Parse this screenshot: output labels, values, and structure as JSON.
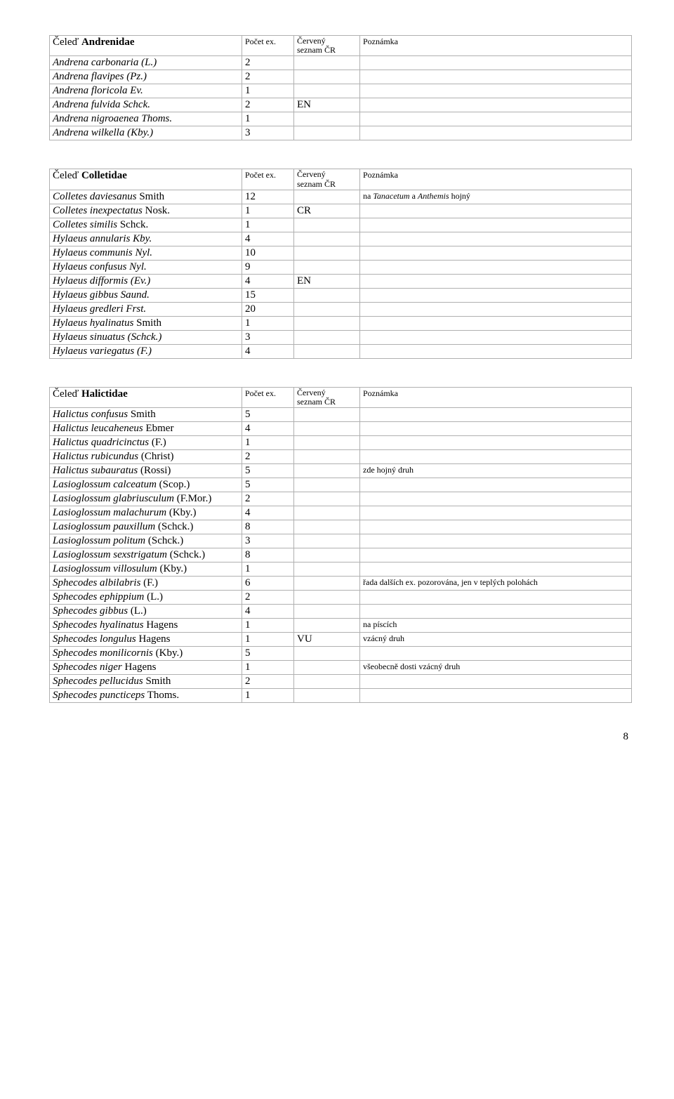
{
  "col_hdrs": {
    "count": "Počet ex.",
    "red_l1": "Červený",
    "red_l2": "seznam ČR",
    "note": "Poznámka"
  },
  "families": [
    {
      "name_prefix": "Čeleď ",
      "name_bold": "Andrenidae",
      "rows": [
        {
          "sp": "Andrena carbonaria (L.)",
          "sp_it": true,
          "cnt": "2",
          "red": "",
          "note": ""
        },
        {
          "sp": "Andrena flavipes (Pz.)",
          "sp_it": true,
          "cnt": "2",
          "red": "",
          "note": ""
        },
        {
          "sp": "Andrena floricola Ev.",
          "sp_it": true,
          "cnt": "1",
          "red": "",
          "note": ""
        },
        {
          "sp": "Andrena fulvida Schck.",
          "sp_it": true,
          "cnt": "2",
          "red": "EN",
          "note": ""
        },
        {
          "sp": "Andrena nigroaenea Thoms.",
          "sp_it": true,
          "cnt": "1",
          "red": "",
          "note": ""
        },
        {
          "sp": "Andrena wilkella (Kby.)",
          "sp_it": true,
          "cnt": "3",
          "red": "",
          "note": ""
        }
      ]
    },
    {
      "name_prefix": "Čeleď ",
      "name_bold": "Colletidae",
      "rows": [
        {
          "sp": "Colletes daviesanus Smith",
          "sp_it_first": "Colletes daviesanus",
          "sp_rest": " Smith",
          "cnt": "12",
          "red": "",
          "note_prefix": "na ",
          "note_it": "Tanacetum",
          "note_mid": " a ",
          "note_it2": "Anthemis",
          "note_suffix": " hojný"
        },
        {
          "sp": "Colletes inexpectatus Nosk.",
          "sp_it_first": "Colletes inexpectatus",
          "sp_rest": " Nosk.",
          "cnt": "1",
          "red": "CR",
          "note": ""
        },
        {
          "sp": "Colletes similis Schck.",
          "sp_it_first": "Colletes similis",
          "sp_rest": " Schck.",
          "cnt": "1",
          "red": "",
          "note": ""
        },
        {
          "sp": "Hylaeus annularis Kby.",
          "sp_it": true,
          "cnt": "4",
          "red": "",
          "note": ""
        },
        {
          "sp": "Hylaeus communis Nyl.",
          "sp_it": true,
          "cnt": "10",
          "red": "",
          "note": ""
        },
        {
          "sp": "Hylaeus confusus Nyl.",
          "sp_it": true,
          "cnt": "9",
          "red": "",
          "note": ""
        },
        {
          "sp": "Hylaeus difformis (Ev.)",
          "sp_it": true,
          "cnt": "4",
          "red": "EN",
          "note": ""
        },
        {
          "sp": "Hylaeus gibbus Saund.",
          "sp_it": true,
          "cnt": "15",
          "red": "",
          "note": ""
        },
        {
          "sp": "Hylaeus gredleri Frst.",
          "sp_it": true,
          "cnt": "20",
          "red": "",
          "note": ""
        },
        {
          "sp": "Hylaeus hyalinatus Smith",
          "sp_it_first": "Hylaeus hyalinatus",
          "sp_rest": " Smith",
          "cnt": "1",
          "red": "",
          "note": ""
        },
        {
          "sp": "Hylaeus sinuatus (Schck.)",
          "sp_it": true,
          "cnt": "3",
          "red": "",
          "note": ""
        },
        {
          "sp": "Hylaeus variegatus (F.)",
          "sp_it": true,
          "cnt": "4",
          "red": "",
          "note": ""
        }
      ]
    },
    {
      "name_prefix": "Čeleď ",
      "name_bold": "Halictidae",
      "rows": [
        {
          "sp_it_first": "Halictus confusus",
          "sp_rest": " Smith",
          "cnt": "5",
          "red": "",
          "note": ""
        },
        {
          "sp_it_first": "Halictus leucaheneus",
          "sp_rest": " Ebmer",
          "cnt": "4",
          "red": "",
          "note": ""
        },
        {
          "sp_it_first": "Halictus quadricinctus",
          "sp_rest": " (F.)",
          "cnt": "1",
          "red": "",
          "note": ""
        },
        {
          "sp_it_first": "Halictus rubicundus",
          "sp_rest": " (Christ)",
          "cnt": "2",
          "red": "",
          "note": ""
        },
        {
          "sp_it_first": "Halictus subauratus",
          "sp_rest": " (Rossi)",
          "cnt": "5",
          "red": "",
          "note": "zde hojný druh"
        },
        {
          "sp_it_first": "Lasioglossum calceatum",
          "sp_rest": " (Scop.)",
          "cnt": "5",
          "red": "",
          "note": ""
        },
        {
          "sp_it_first": "Lasioglossum glabriusculum",
          "sp_rest": " (F.Mor.)",
          "cnt": "2",
          "red": "",
          "note": ""
        },
        {
          "sp_it_first": "Lasioglossum malachurum",
          "sp_rest": " (Kby.)",
          "cnt": "4",
          "red": "",
          "note": ""
        },
        {
          "sp_it_first": "Lasioglossum pauxillum",
          "sp_rest": " (Schck.)",
          "cnt": "8",
          "red": "",
          "note": ""
        },
        {
          "sp_it_first": "Lasioglossum politum",
          "sp_rest": " (Schck.)",
          "cnt": "3",
          "red": "",
          "note": ""
        },
        {
          "sp_it_first": "Lasioglossum sexstrigatum",
          "sp_rest": " (Schck.)",
          "cnt": "8",
          "red": "",
          "note": ""
        },
        {
          "sp_it_first": "Lasioglossum villosulum",
          "sp_rest": " (Kby.)",
          "cnt": "1",
          "red": "",
          "note": ""
        },
        {
          "sp_it_first": "Sphecodes albilabris",
          "sp_rest": " (F.)",
          "cnt": "6",
          "red": "",
          "note": "řada dalších ex. pozorována, jen v teplých polohách"
        },
        {
          "sp_it_first": "Sphecodes ephippium",
          "sp_rest": " (L.)",
          "cnt": "2",
          "red": "",
          "note": ""
        },
        {
          "sp_it_first": "Sphecodes gibbus",
          "sp_rest": " (L.)",
          "cnt": "4",
          "red": "",
          "note": ""
        },
        {
          "sp_it_first": "Sphecodes hyalinatus",
          "sp_rest": " Hagens",
          "cnt": "1",
          "red": "",
          "note": "na píscích"
        },
        {
          "sp_it_first": "Sphecodes longulus",
          "sp_rest": " Hagens",
          "cnt": "1",
          "red": "VU",
          "note": "vzácný druh"
        },
        {
          "sp_it_first": "Sphecodes monilicornis",
          "sp_rest": " (Kby.)",
          "cnt": "5",
          "red": "",
          "note": ""
        },
        {
          "sp_it_first": "Sphecodes niger",
          "sp_rest": " Hagens",
          "cnt": "1",
          "red": "",
          "note": "všeobecně dosti vzácný druh"
        },
        {
          "sp_it_first": "Sphecodes pellucidus",
          "sp_rest": " Smith",
          "cnt": "2",
          "red": "",
          "note": ""
        },
        {
          "sp_it_first": "Sphecodes puncticeps",
          "sp_rest": " Thoms.",
          "cnt": "1",
          "red": "",
          "note": ""
        }
      ]
    }
  ],
  "page_number": "8"
}
